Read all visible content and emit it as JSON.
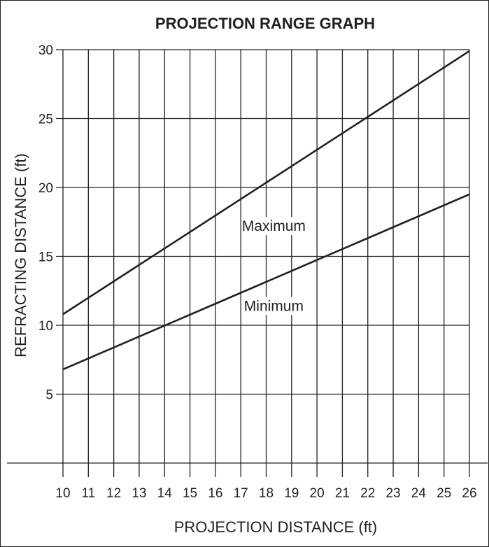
{
  "chart_data": {
    "type": "line",
    "title": "PROJECTION RANGE GRAPH",
    "xlabel": "PROJECTION DISTANCE (ft)",
    "ylabel": "REFRACTING DISTANCE (ft)",
    "xlim": [
      10,
      26
    ],
    "ylim": [
      0,
      30
    ],
    "x_ticks": [
      "10",
      "11",
      "12",
      "13",
      "14",
      "15",
      "16",
      "17",
      "18",
      "19",
      "20",
      "21",
      "22",
      "23",
      "24",
      "25",
      "26"
    ],
    "y_ticks": [
      "5",
      "10",
      "15",
      "20",
      "25",
      "30"
    ],
    "grid": true,
    "series": [
      {
        "name": "Maximum",
        "x": [
          10,
          26
        ],
        "y": [
          10.8,
          29.9
        ]
      },
      {
        "name": "Minimum",
        "x": [
          10,
          26
        ],
        "y": [
          6.8,
          19.5
        ]
      }
    ],
    "annotations": [
      {
        "text": "Maximum",
        "x": 18.3,
        "y": 17.2
      },
      {
        "text": "Minimum",
        "x": 18.3,
        "y": 11.4
      }
    ],
    "line_color": "#231f20"
  }
}
